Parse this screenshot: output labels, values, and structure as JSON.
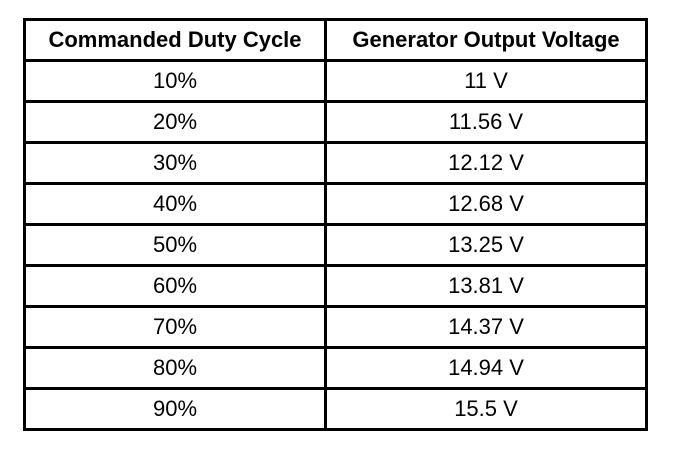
{
  "table": {
    "headers": [
      "Commanded Duty Cycle",
      "Generator Output Voltage"
    ],
    "rows": [
      [
        "10%",
        "11 V"
      ],
      [
        "20%",
        "11.56 V"
      ],
      [
        "30%",
        "12.12 V"
      ],
      [
        "40%",
        "12.68 V"
      ],
      [
        "50%",
        "13.25 V"
      ],
      [
        "60%",
        "13.81 V"
      ],
      [
        "70%",
        "14.37 V"
      ],
      [
        "80%",
        "14.94 V"
      ],
      [
        "90%",
        "15.5 V"
      ]
    ]
  }
}
